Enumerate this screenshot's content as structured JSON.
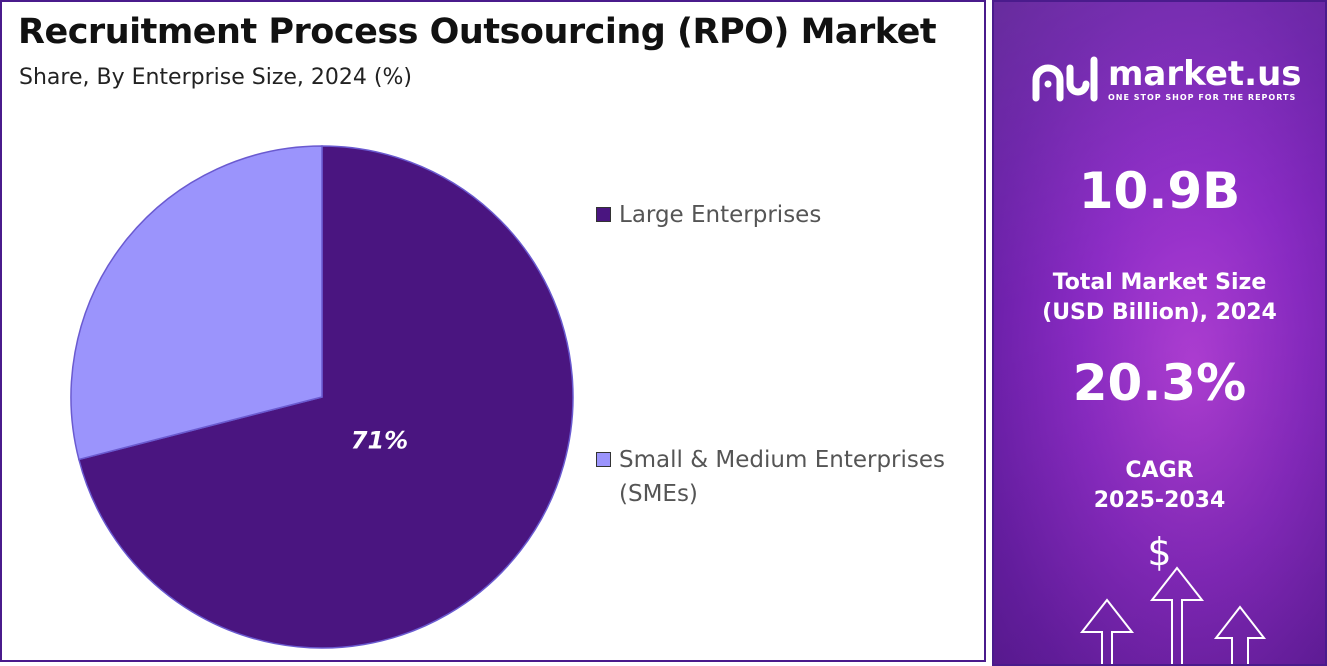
{
  "header": {
    "title": "Recruitment Process Outsourcing (RPO) Market",
    "subtitle": "Share, By Enterprise Size, 2024 (%)"
  },
  "chart_data": {
    "type": "pie",
    "title": "Recruitment Process Outsourcing (RPO) Market",
    "subtitle": "Share, By Enterprise Size, 2024 (%)",
    "categories": [
      "Large Enterprises",
      "Small & Medium Enterprises (SMEs)"
    ],
    "values": [
      71,
      29
    ],
    "data_labels": [
      "71%",
      ""
    ],
    "colors": [
      "#4a1580",
      "#9b94fc"
    ],
    "legend_position": "right"
  },
  "side_panel": {
    "brand": "market.us",
    "tagline": "ONE STOP SHOP FOR THE REPORTS",
    "market_size_value": "10.9B",
    "market_size_label_1": "Total Market Size",
    "market_size_label_2": "(USD Billion), 2024",
    "cagr_value": "20.3%",
    "cagr_label_1": "CAGR",
    "cagr_label_2": "2025-2034",
    "currency_symbol": "$",
    "icon": "growth-arrows-icon"
  }
}
